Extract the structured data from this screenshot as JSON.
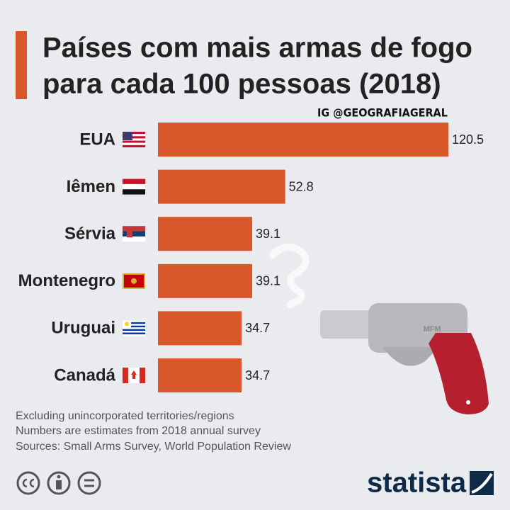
{
  "chart_data": {
    "type": "bar",
    "orientation": "horizontal",
    "title_lines": [
      "Países com mais armas de fogo",
      "para cada 100 pessoas (2018)"
    ],
    "watermark": "IG @GEOGRAFIAGERAL",
    "categories": [
      "EUA",
      "Iêmen",
      "Sérvia",
      "Montenegro",
      "Uruguai",
      "Canadá"
    ],
    "values": [
      120.5,
      52.8,
      39.1,
      39.1,
      34.7,
      34.7
    ],
    "color": "#d9582b",
    "notes": [
      "Excluding unincorporated territories/regions",
      "Numbers are estimates from 2018 annual survey",
      "Sources: Small Arms Survey, World Population Review"
    ],
    "illustration_text": "MFM",
    "brand": "statista"
  }
}
